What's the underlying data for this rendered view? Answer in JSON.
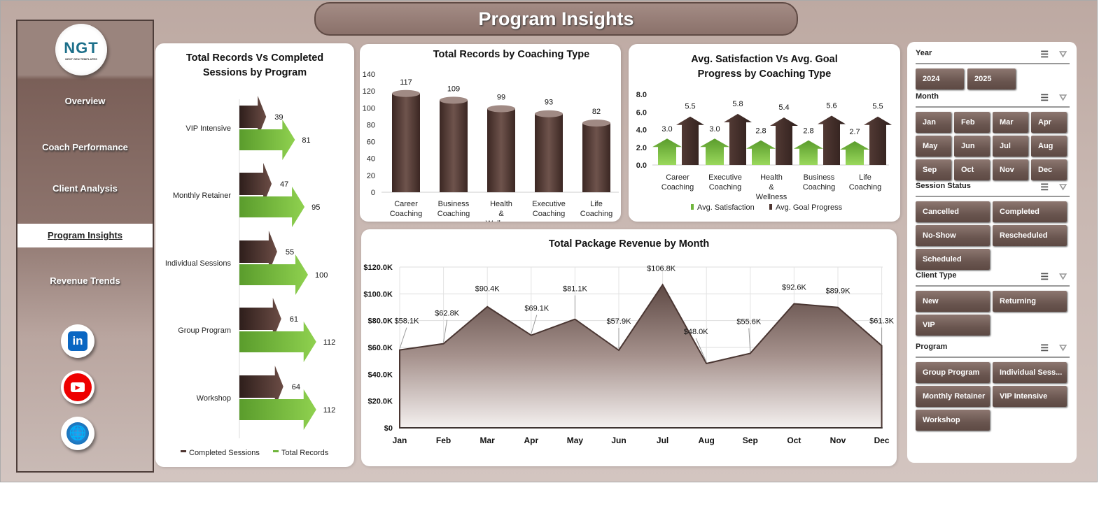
{
  "title": "Program Insights",
  "logo": {
    "text": "NGT",
    "subtext": "NEXT GEN TEMPLATES"
  },
  "nav": [
    {
      "label": "Overview"
    },
    {
      "label": "Coach Performance"
    },
    {
      "label": "Client Analysis"
    },
    {
      "label": "Program Insights",
      "active": true
    },
    {
      "label": "Revenue Trends"
    }
  ],
  "social": [
    "linkedin-icon",
    "youtube-icon",
    "globe-icon"
  ],
  "colors": {
    "brown": "#4e3430",
    "green": "#6fb53c",
    "accent": "#7a5f58"
  },
  "chart_data": [
    {
      "type": "bar",
      "orientation": "horizontal",
      "title": "Total Records Vs Completed Sessions by Program",
      "categories": [
        "VIP Intensive",
        "Monthly Retainer",
        "Individual Sessions",
        "Group Program",
        "Workshop"
      ],
      "series": [
        {
          "name": "Completed Sessions",
          "color": "#4e3430",
          "values": [
            39,
            47,
            55,
            61,
            64
          ]
        },
        {
          "name": "Total Records",
          "color": "#6fb53c",
          "values": [
            81,
            95,
            100,
            112,
            112
          ]
        }
      ],
      "legend": "bottom"
    },
    {
      "type": "bar",
      "title": "Total Records by Coaching Type",
      "categories": [
        "Career Coaching",
        "Business Coaching",
        "Health & Wellness",
        "Executive Coaching",
        "Life Coaching"
      ],
      "values": [
        117,
        109,
        99,
        93,
        82
      ],
      "ylim": [
        0,
        140
      ],
      "yticks": [
        0,
        20,
        40,
        60,
        80,
        100,
        120,
        140
      ]
    },
    {
      "type": "bar",
      "title": "Avg. Satisfaction Vs Avg. Goal Progress by Coaching Type",
      "categories": [
        "Career Coaching",
        "Executive Coaching",
        "Health & Wellness",
        "Business Coaching",
        "Life Coaching"
      ],
      "series": [
        {
          "name": "Avg. Satisfaction",
          "color": "#6fb53c",
          "values": [
            3.0,
            3.0,
            2.8,
            2.8,
            2.7
          ]
        },
        {
          "name": "Avg. Goal Progress",
          "color": "#4e3430",
          "values": [
            5.5,
            5.8,
            5.4,
            5.6,
            5.5
          ]
        }
      ],
      "ylim": [
        0,
        8
      ],
      "yticks": [
        "0.0",
        "2.0",
        "4.0",
        "6.0",
        "8.0"
      ],
      "legend": "bottom"
    },
    {
      "type": "area",
      "title": "Total Package Revenue  by Month",
      "categories": [
        "Jan",
        "Feb",
        "Mar",
        "Apr",
        "May",
        "Jun",
        "Jul",
        "Aug",
        "Sep",
        "Oct",
        "Nov",
        "Dec"
      ],
      "values": [
        58.1,
        62.8,
        90.4,
        69.1,
        81.1,
        57.9,
        106.8,
        48.0,
        55.6,
        92.6,
        89.9,
        61.3
      ],
      "labels": [
        "$58.1K",
        "$62.8K",
        "$90.4K",
        "$69.1K",
        "$81.1K",
        "$57.9K",
        "$106.8K",
        "$48.0K",
        "$55.6K",
        "$92.6K",
        "$89.9K",
        "$61.3K"
      ],
      "unit": "K",
      "ylim": [
        0,
        120
      ],
      "yticks": [
        "$0",
        "$20.0K",
        "$40.0K",
        "$60.0K",
        "$80.0K",
        "$100.0K",
        "$120.0K"
      ],
      "grid": true
    }
  ],
  "slicers": [
    {
      "title": "Year",
      "items": [
        "2024",
        "2025"
      ]
    },
    {
      "title": "Month",
      "items": [
        "Jan",
        "Feb",
        "Mar",
        "Apr",
        "May",
        "Jun",
        "Jul",
        "Aug",
        "Sep",
        "Oct",
        "Nov",
        "Dec"
      ]
    },
    {
      "title": "Session Status",
      "items": [
        "Cancelled",
        "Completed",
        "No-Show",
        "Rescheduled",
        "Scheduled"
      ]
    },
    {
      "title": "Client Type",
      "items": [
        "New",
        "Returning",
        "VIP"
      ]
    },
    {
      "title": "Program",
      "items": [
        "Group Program",
        "Individual Sess...",
        "Monthly Retainer",
        "VIP Intensive",
        "Workshop"
      ]
    }
  ]
}
